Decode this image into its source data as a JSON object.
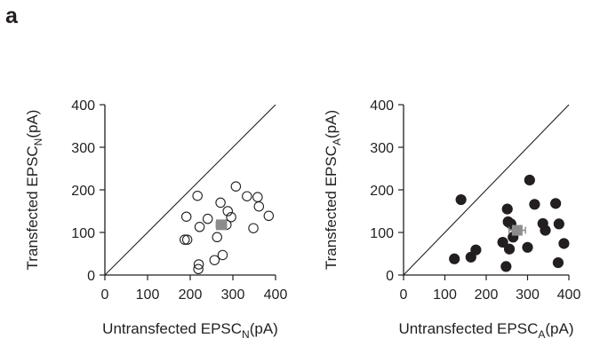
{
  "panel_label": "a",
  "chart_data": [
    {
      "type": "scatter",
      "title": "",
      "xlabel": {
        "main": "Untransfected EPSC",
        "sub": "N",
        "unit": "(pA)"
      },
      "ylabel": {
        "main": "Transfected EPSC",
        "sub": "N",
        "unit": "(pA)"
      },
      "xlim": [
        0,
        400
      ],
      "ylim": [
        0,
        400
      ],
      "xticks": [
        "0",
        "100",
        "200",
        "300",
        "400"
      ],
      "yticks": [
        "0",
        "100",
        "200",
        "300",
        "400"
      ],
      "identity_line": true,
      "grid": false,
      "marker": {
        "style": "open-circle",
        "color": "#231f20"
      },
      "points": [
        [
          187,
          83
        ],
        [
          193,
          83
        ],
        [
          191,
          137
        ],
        [
          217,
          186
        ],
        [
          219,
          14
        ],
        [
          220,
          25
        ],
        [
          222,
          113
        ],
        [
          241,
          132
        ],
        [
          257,
          35
        ],
        [
          263,
          89
        ],
        [
          271,
          170
        ],
        [
          276,
          47
        ],
        [
          285,
          118
        ],
        [
          288,
          150
        ],
        [
          296,
          136
        ],
        [
          307,
          208
        ],
        [
          333,
          185
        ],
        [
          348,
          110
        ],
        [
          358,
          183
        ],
        [
          361,
          161
        ],
        [
          384,
          139
        ]
      ],
      "mean": {
        "x": 273,
        "y": 118,
        "xerr": 12,
        "yerr": 10,
        "color": "#8c8c8c"
      }
    },
    {
      "type": "scatter",
      "title": "",
      "xlabel": {
        "main": "Untransfected EPSC",
        "sub": "A",
        "unit": "(pA)"
      },
      "ylabel": {
        "main": "Transfected EPSC",
        "sub": "A",
        "unit": "(pA)"
      },
      "xlim": [
        0,
        400
      ],
      "ylim": [
        0,
        400
      ],
      "xticks": [
        "0",
        "100",
        "200",
        "300",
        "400"
      ],
      "yticks": [
        "0",
        "100",
        "200",
        "300",
        "400"
      ],
      "identity_line": true,
      "grid": false,
      "marker": {
        "style": "filled-circle",
        "color": "#231f20"
      },
      "points": [
        [
          123,
          38
        ],
        [
          139,
          177
        ],
        [
          163,
          42
        ],
        [
          175,
          59
        ],
        [
          240,
          77
        ],
        [
          248,
          20
        ],
        [
          251,
          155
        ],
        [
          253,
          125
        ],
        [
          256,
          61
        ],
        [
          260,
          120
        ],
        [
          265,
          89
        ],
        [
          300,
          65
        ],
        [
          305,
          223
        ],
        [
          317,
          166
        ],
        [
          337,
          121
        ],
        [
          343,
          105
        ],
        [
          368,
          168
        ],
        [
          374,
          29
        ],
        [
          376,
          120
        ],
        [
          388,
          74
        ]
      ],
      "mean": {
        "x": 275,
        "y": 105,
        "xerr": 20,
        "yerr": 9,
        "color": "#8c8c8c"
      }
    }
  ]
}
